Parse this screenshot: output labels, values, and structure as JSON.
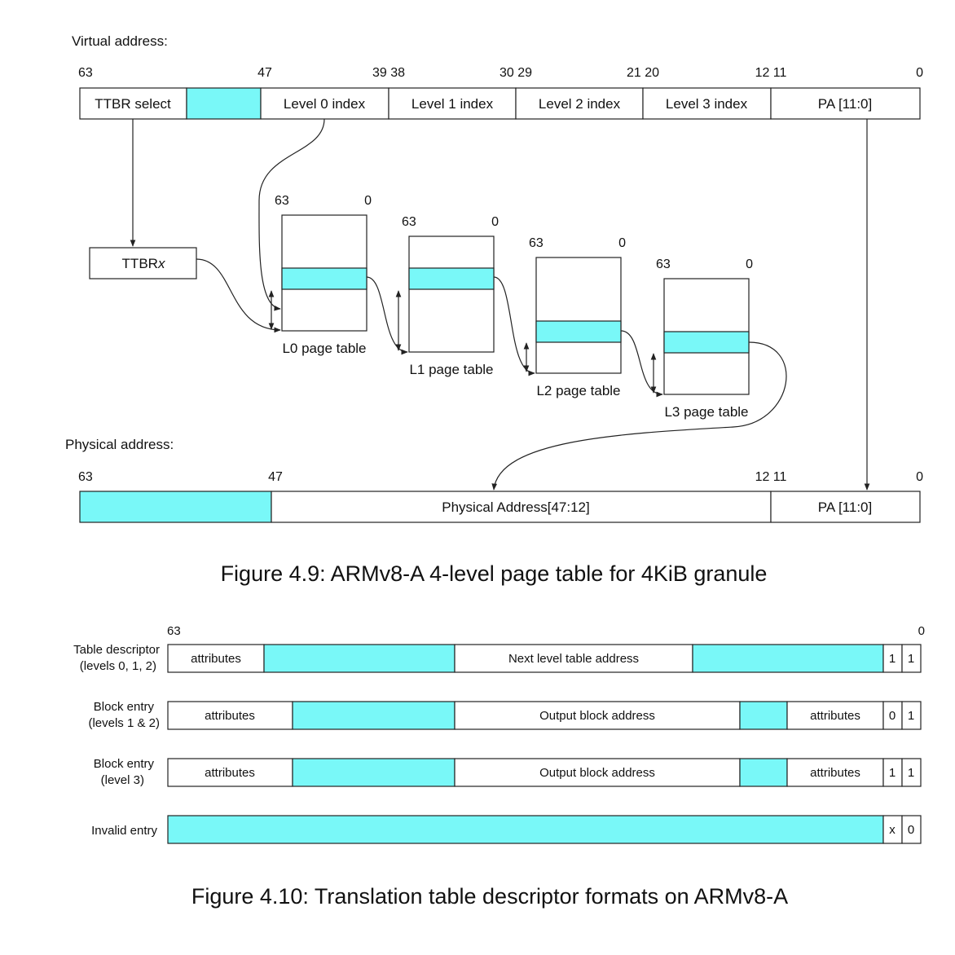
{
  "figure_4_9": {
    "virtual_label": "Virtual address:",
    "physical_label": "Physical address:",
    "va_bits": [
      "63",
      "47",
      "39 38",
      "30 29",
      "21 20",
      "12 11",
      "0"
    ],
    "va_fields": {
      "ttbr_select": "TTBR select",
      "level0": "Level 0 index",
      "level1": "Level 1 index",
      "level2": "Level 2 index",
      "level3": "Level 3 index",
      "pa_low": "PA [11:0]"
    },
    "ttbr_prefix": "TTBR",
    "ttbr_suffix": "x",
    "tables": [
      {
        "label": "L0 page table",
        "hi": "63",
        "lo": "0"
      },
      {
        "label": "L1 page table",
        "hi": "63",
        "lo": "0"
      },
      {
        "label": "L2 page table",
        "hi": "63",
        "lo": "0"
      },
      {
        "label": "L3 page table",
        "hi": "63",
        "lo": "0"
      }
    ],
    "pa_bits": [
      "63",
      "47",
      "12 11",
      "0"
    ],
    "pa_fields": {
      "main": "Physical Address[47:12]",
      "low": "PA [11:0]"
    },
    "caption": "Figure 4.9: ARMv8-A 4-level page table for 4KiB granule"
  },
  "figure_4_10": {
    "bit_hi": "63",
    "bit_lo": "0",
    "rows": [
      {
        "label1": "Table descriptor",
        "label2": "(levels 0, 1, 2)",
        "f1": "attributes",
        "f2": "Next level table address",
        "b1": "1",
        "b0": "1"
      },
      {
        "label1": "Block entry",
        "label2": "(levels 1 & 2)",
        "f1": "attributes",
        "f2": "Output block address",
        "f3": "attributes",
        "b1": "0",
        "b0": "1"
      },
      {
        "label1": "Block entry",
        "label2": "(level 3)",
        "f1": "attributes",
        "f2": "Output block address",
        "f3": "attributes",
        "b1": "1",
        "b0": "1"
      },
      {
        "label1": "Invalid entry",
        "b1": "x",
        "b0": "0"
      }
    ],
    "caption": "Figure 4.10: Translation table descriptor formats on ARMv8-A"
  },
  "colors": {
    "highlight": "#79f8f8",
    "line": "#222222"
  }
}
